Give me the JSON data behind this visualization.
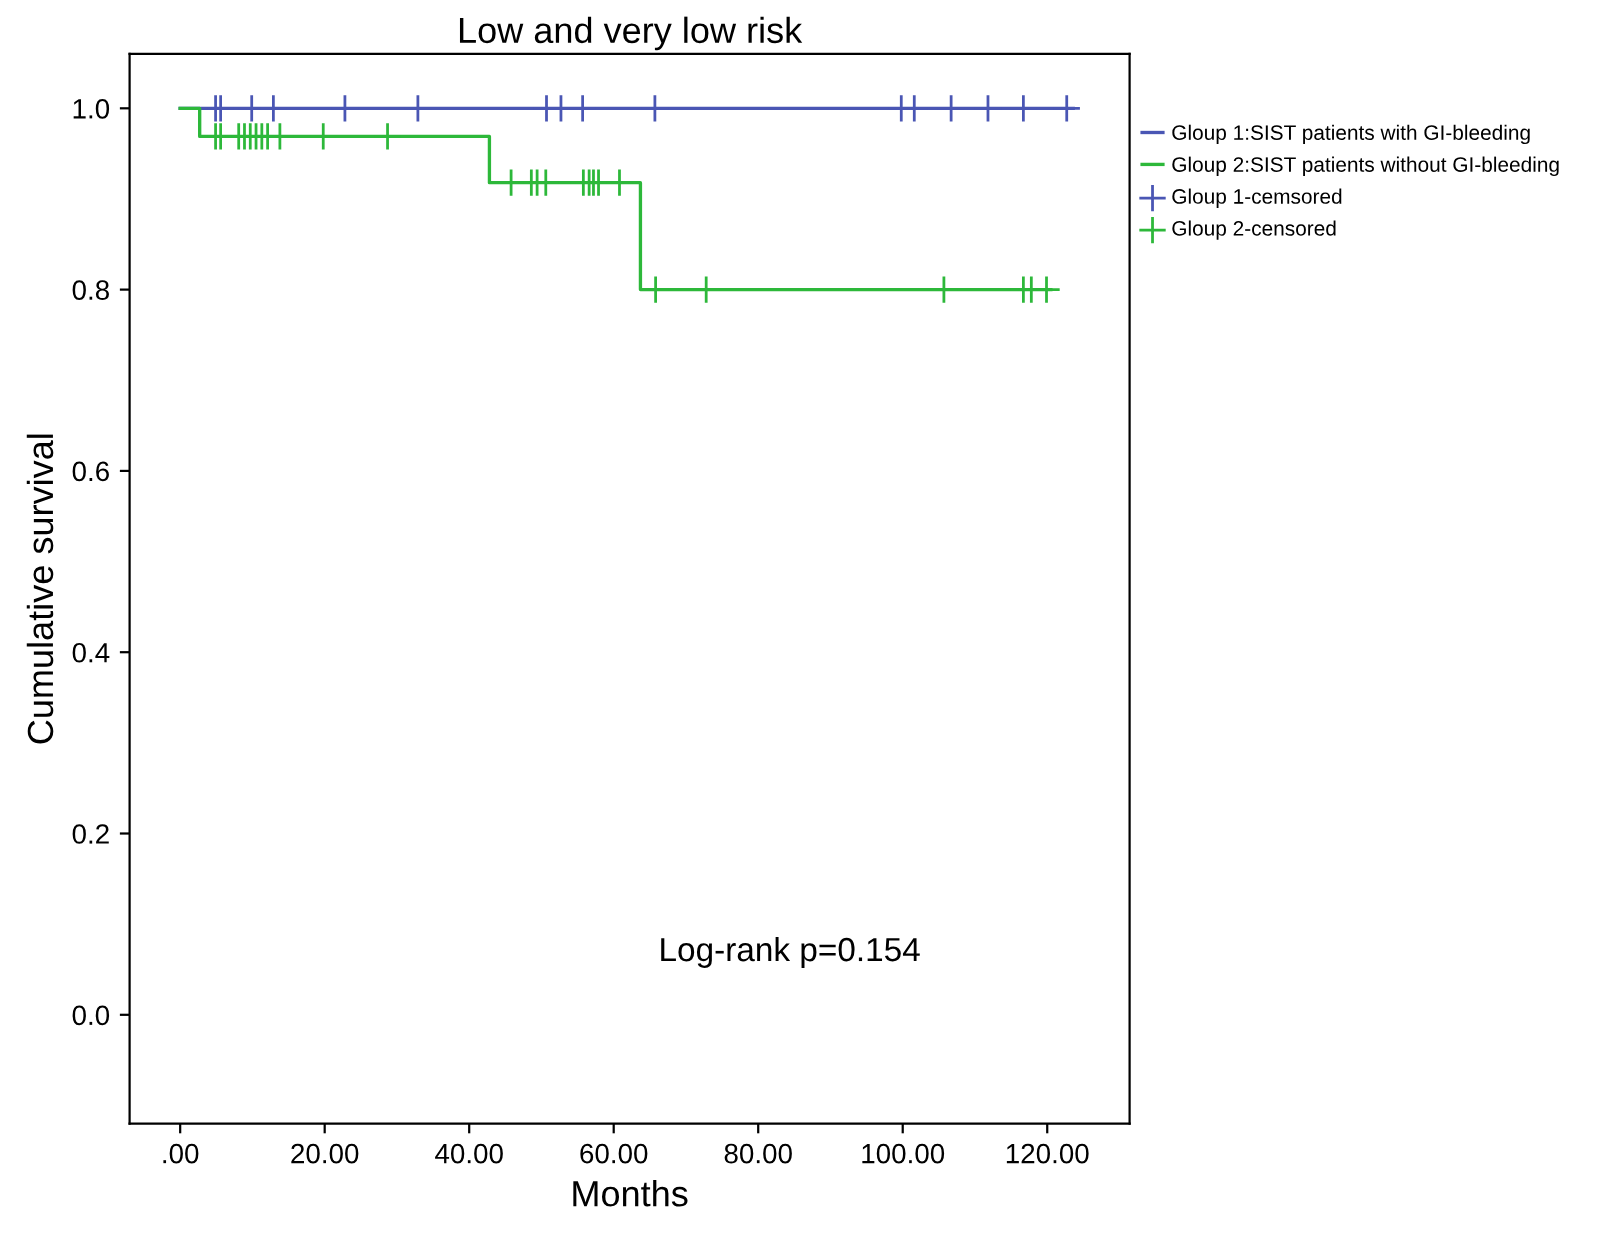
{
  "chart_data": {
    "type": "step",
    "title": "Low and very low risk",
    "xlabel": "Months",
    "ylabel": "Cumulative survival",
    "series": [
      {
        "name": "Gloup 1:SIST patients with GI-bleeding",
        "color": "#4a56b4",
        "x": [
          0,
          123.6
        ],
        "values": [
          1.0,
          1.0
        ]
      },
      {
        "name": "Gloup 2:SIST patients without GI-bleeding",
        "color": "#2db83a",
        "x": [
          0,
          2.7,
          42.8,
          63.7,
          120.5
        ],
        "values": [
          1.0,
          0.969,
          0.918,
          0.8,
          0.8
        ]
      },
      {
        "name": "Gloup 1-cemsored",
        "type": "scatter",
        "marker": "cross",
        "color": "#4a56b4",
        "x": [
          4.9,
          5.6,
          9.9,
          12.9,
          22.8,
          32.9,
          50.7,
          52.7,
          55.7,
          65.7,
          99.8,
          101.6,
          106.7,
          111.8,
          116.7,
          122.7
        ],
        "values": [
          1.0,
          1.0,
          1.0,
          1.0,
          1.0,
          1.0,
          1.0,
          1.0,
          1.0,
          1.0,
          1.0,
          1.0,
          1.0,
          1.0,
          1.0,
          1.0
        ]
      },
      {
        "name": "Gloup 2-censored",
        "type": "scatter",
        "marker": "cross",
        "color": "#2db83a",
        "x": [
          4.9,
          5.6,
          8.1,
          8.9,
          9.7,
          10.5,
          11.3,
          12.1,
          13.8,
          19.8,
          28.7,
          45.8,
          48.6,
          49.4,
          50.6,
          55.8,
          56.6,
          57.2,
          57.9,
          60.8,
          65.8,
          72.8,
          105.7,
          116.7,
          117.8,
          119.9
        ],
        "values": [
          0.969,
          0.969,
          0.969,
          0.969,
          0.969,
          0.969,
          0.969,
          0.969,
          0.969,
          0.969,
          0.969,
          0.918,
          0.918,
          0.918,
          0.918,
          0.918,
          0.918,
          0.918,
          0.918,
          0.918,
          0.8,
          0.8,
          0.8,
          0.8,
          0.8,
          0.8
        ]
      }
    ],
    "xlim": [
      -7.0,
      131.4
    ],
    "ylim": [
      -0.12,
      1.06
    ],
    "xticks": [
      {
        "value": 0,
        "label": ".00"
      },
      {
        "value": 20,
        "label": "20.00"
      },
      {
        "value": 40,
        "label": "40.00"
      },
      {
        "value": 60,
        "label": "60.00"
      },
      {
        "value": 80,
        "label": "80.00"
      },
      {
        "value": 100,
        "label": "100.00"
      },
      {
        "value": 120,
        "label": "120.00"
      }
    ],
    "yticks": [
      {
        "value": 0,
        "label": "0.0"
      },
      {
        "value": 0.2,
        "label": "0.2"
      },
      {
        "value": 0.4,
        "label": "0.4"
      },
      {
        "value": 0.6,
        "label": "0.6"
      },
      {
        "value": 0.8,
        "label": "0.8"
      },
      {
        "value": 1.0,
        "label": "1.0"
      }
    ],
    "annotations": [
      "Log-rank p=0.154"
    ],
    "legend": "right",
    "grid": false
  }
}
